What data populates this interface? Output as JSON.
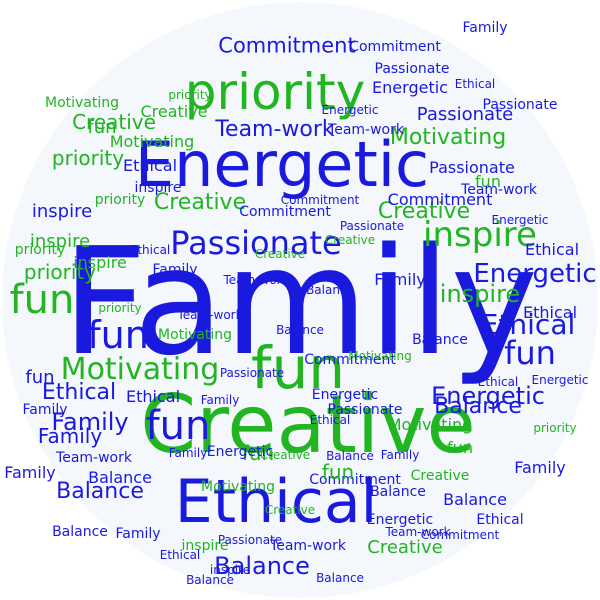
{
  "colors": {
    "blue": "#1a1adf",
    "green": "#22b522",
    "background": "#f4f7fb"
  },
  "words": [
    {
      "text": "Family",
      "color": "blue"
    },
    {
      "text": "Creative",
      "color": "green"
    },
    {
      "text": "Energetic",
      "color": "blue"
    },
    {
      "text": "Ethical",
      "color": "blue"
    },
    {
      "text": "priority",
      "color": "green"
    },
    {
      "text": "fun",
      "color": "green"
    },
    {
      "text": "Passionate",
      "color": "blue"
    },
    {
      "text": "Motivating",
      "color": "green"
    },
    {
      "text": "Balance",
      "color": "blue"
    },
    {
      "text": "Commitment",
      "color": "blue"
    },
    {
      "text": "Team-work",
      "color": "blue"
    },
    {
      "text": "inspire",
      "color": "green"
    },
    {
      "text": "inspire",
      "color": "green"
    },
    {
      "text": "fun",
      "color": "green"
    },
    {
      "text": "fun",
      "color": "blue"
    },
    {
      "text": "fun",
      "color": "blue"
    },
    {
      "text": "fun",
      "color": "blue"
    },
    {
      "text": "Ethical",
      "color": "blue"
    },
    {
      "text": "Family",
      "color": "blue"
    },
    {
      "text": "Energetic",
      "color": "blue"
    },
    {
      "text": "Motivating",
      "color": "green"
    },
    {
      "text": "Passionate",
      "color": "blue"
    },
    {
      "text": "Creative",
      "color": "green"
    },
    {
      "text": "priority",
      "color": "green"
    },
    {
      "text": "fun",
      "color": "green"
    },
    {
      "text": "fun",
      "color": "blue"
    },
    {
      "text": "fun",
      "color": "green"
    },
    {
      "text": "Balance",
      "color": "blue"
    },
    {
      "text": "Balance",
      "color": "blue"
    },
    {
      "text": "Passionate",
      "color": "blue"
    },
    {
      "text": "Commitment",
      "color": "blue"
    },
    {
      "text": "Team-work",
      "color": "blue"
    },
    {
      "text": "Energetic",
      "color": "blue"
    },
    {
      "text": "Ethical",
      "color": "blue"
    },
    {
      "text": "Family",
      "color": "blue"
    },
    {
      "text": "Family",
      "color": "blue"
    },
    {
      "text": "inspire",
      "color": "blue"
    },
    {
      "text": "inspire",
      "color": "green"
    },
    {
      "text": "priority",
      "color": "green"
    },
    {
      "text": "priority",
      "color": "green"
    },
    {
      "text": "Creative",
      "color": "green"
    },
    {
      "text": "Motivating",
      "color": "green"
    },
    {
      "text": "Ethical",
      "color": "blue"
    },
    {
      "text": "Ethical",
      "color": "blue"
    },
    {
      "text": "Team-work",
      "color": "blue"
    },
    {
      "text": "fun",
      "color": "green"
    },
    {
      "text": "Balance",
      "color": "blue"
    },
    {
      "text": "Commitment",
      "color": "blue"
    },
    {
      "text": "Passionate",
      "color": "blue"
    },
    {
      "text": "Energetic",
      "color": "blue"
    },
    {
      "text": "Creative",
      "color": "green"
    },
    {
      "text": "Motivating",
      "color": "green"
    },
    {
      "text": "Ethical",
      "color": "blue"
    },
    {
      "text": "Ethical",
      "color": "blue"
    },
    {
      "text": "Balance",
      "color": "blue"
    },
    {
      "text": "Family",
      "color": "blue"
    },
    {
      "text": "Family",
      "color": "blue"
    },
    {
      "text": "Family",
      "color": "blue"
    },
    {
      "text": "Creative",
      "color": "green"
    },
    {
      "text": "Creative",
      "color": "green"
    },
    {
      "text": "priority",
      "color": "green"
    },
    {
      "text": "priority",
      "color": "green"
    },
    {
      "text": "Energetic",
      "color": "blue"
    },
    {
      "text": "inspire",
      "color": "green"
    },
    {
      "text": "inspire",
      "color": "green"
    },
    {
      "text": "Motivating",
      "color": "green"
    },
    {
      "text": "Balance",
      "color": "blue"
    },
    {
      "text": "Balance",
      "color": "blue"
    },
    {
      "text": "Team-work",
      "color": "blue"
    },
    {
      "text": "Commitment",
      "color": "blue"
    },
    {
      "text": "Passionate",
      "color": "blue"
    },
    {
      "text": "Ethical",
      "color": "blue"
    },
    {
      "text": "fun",
      "color": "green"
    },
    {
      "text": "fun",
      "color": "green"
    },
    {
      "text": "Family",
      "color": "blue"
    },
    {
      "text": "Creative",
      "color": "green"
    },
    {
      "text": "Energetic",
      "color": "blue"
    },
    {
      "text": "Balance",
      "color": "blue"
    },
    {
      "text": "Team-work",
      "color": "blue"
    },
    {
      "text": "Commitment",
      "color": "blue"
    },
    {
      "text": "Passionate",
      "color": "blue"
    },
    {
      "text": "Motivating",
      "color": "green"
    },
    {
      "text": "Family",
      "color": "blue"
    },
    {
      "text": "Ethical",
      "color": "blue"
    },
    {
      "text": "inspire",
      "color": "blue"
    },
    {
      "text": "priority",
      "color": "green"
    },
    {
      "text": "Creative",
      "color": "green"
    },
    {
      "text": "Balance",
      "color": "blue"
    },
    {
      "text": "Energetic",
      "color": "blue"
    },
    {
      "text": "Family",
      "color": "blue"
    },
    {
      "text": "Team-work",
      "color": "blue"
    },
    {
      "text": "Commitment",
      "color": "blue"
    },
    {
      "text": "Balance",
      "color": "blue"
    },
    {
      "text": "Motivating",
      "color": "green"
    },
    {
      "text": "Energetic",
      "color": "blue"
    },
    {
      "text": "Ethical",
      "color": "blue"
    },
    {
      "text": "Passionate",
      "color": "blue"
    },
    {
      "text": "Creative",
      "color": "green"
    },
    {
      "text": "Family",
      "color": "blue"
    },
    {
      "text": "Balance",
      "color": "blue"
    },
    {
      "text": "Ethical",
      "color": "blue"
    },
    {
      "text": "Team-work",
      "color": "blue"
    },
    {
      "text": "Commitment",
      "color": "blue"
    },
    {
      "text": "Ethical",
      "color": "blue"
    },
    {
      "text": "priority",
      "color": "green"
    },
    {
      "text": "Energetic",
      "color": "blue"
    },
    {
      "text": "inspire",
      "color": "blue"
    },
    {
      "text": "Creative",
      "color": "green"
    },
    {
      "text": "Passionate",
      "color": "blue"
    },
    {
      "text": "Motivating",
      "color": "green"
    },
    {
      "text": "Balance",
      "color": "blue"
    },
    {
      "text": "Family",
      "color": "blue"
    },
    {
      "text": "Ethical",
      "color": "blue"
    },
    {
      "text": "Team-work",
      "color": "blue"
    },
    {
      "text": "Commitment",
      "color": "blue"
    },
    {
      "text": "Energetic",
      "color": "blue"
    },
    {
      "text": "Creative",
      "color": "green"
    },
    {
      "text": "Balance",
      "color": "blue"
    },
    {
      "text": "Passionate",
      "color": "blue"
    },
    {
      "text": "Family",
      "color": "blue"
    }
  ]
}
